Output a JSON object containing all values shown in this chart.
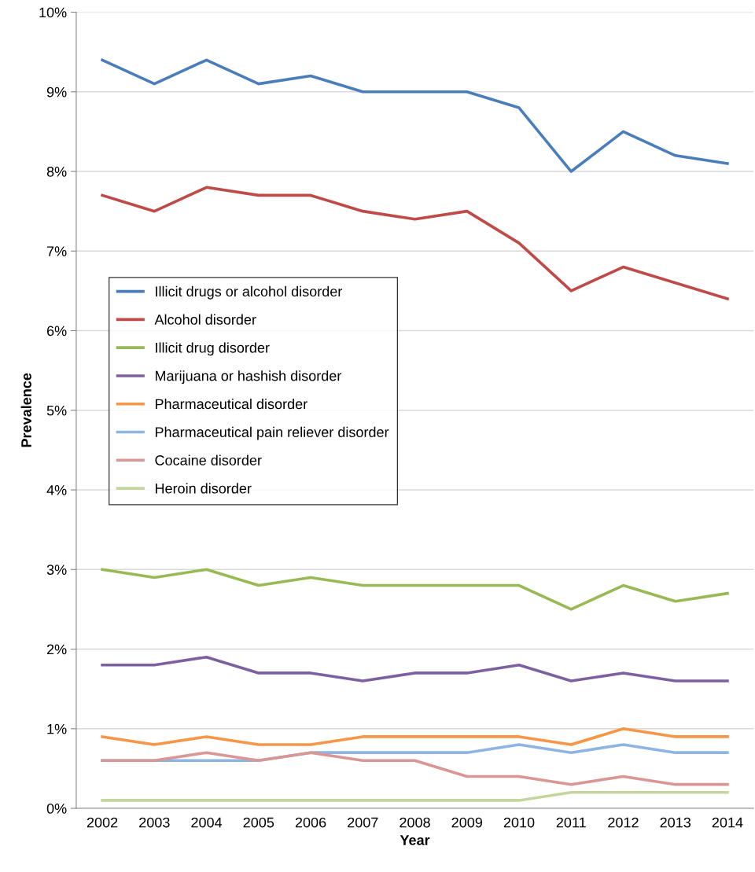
{
  "chart_data": {
    "type": "line",
    "xlabel": "Year",
    "ylabel": "Prevalence",
    "categories": [
      "2002",
      "2003",
      "2004",
      "2005",
      "2006",
      "2007",
      "2008",
      "2009",
      "2010",
      "2011",
      "2012",
      "2013",
      "2014"
    ],
    "ylim": [
      0,
      10
    ],
    "yticks": [
      {
        "value": 0,
        "label": "0%"
      },
      {
        "value": 1,
        "label": "1%"
      },
      {
        "value": 2,
        "label": "2%"
      },
      {
        "value": 3,
        "label": "3%"
      },
      {
        "value": 4,
        "label": "4%"
      },
      {
        "value": 5,
        "label": "5%"
      },
      {
        "value": 6,
        "label": "6%"
      },
      {
        "value": 7,
        "label": "7%"
      },
      {
        "value": 8,
        "label": "8%"
      },
      {
        "value": 9,
        "label": "9%"
      },
      {
        "value": 10,
        "label": "10%"
      }
    ],
    "grid": "y",
    "legend": "left",
    "marker": "none",
    "line_style": "solid",
    "series": [
      {
        "name": "Illicit drugs or alcohol disorder",
        "color": "#4a7ebb",
        "values": [
          9.4,
          9.1,
          9.4,
          9.1,
          9.2,
          9.0,
          9.0,
          9.0,
          8.8,
          8.0,
          8.5,
          8.2,
          8.1
        ]
      },
      {
        "name": "Alcohol disorder",
        "color": "#be4b48",
        "values": [
          7.7,
          7.5,
          7.8,
          7.7,
          7.7,
          7.5,
          7.4,
          7.5,
          7.1,
          6.5,
          6.8,
          6.6,
          6.4
        ]
      },
      {
        "name": "Illicit drug disorder",
        "color": "#98b954",
        "values": [
          3.0,
          2.9,
          3.0,
          2.8,
          2.9,
          2.8,
          2.8,
          2.8,
          2.8,
          2.5,
          2.8,
          2.6,
          2.7
        ]
      },
      {
        "name": "Marijuana or hashish disorder",
        "color": "#7d60a0",
        "values": [
          1.8,
          1.8,
          1.9,
          1.7,
          1.7,
          1.6,
          1.7,
          1.7,
          1.8,
          1.6,
          1.7,
          1.6,
          1.6
        ]
      },
      {
        "name": "Pharmaceutical disorder",
        "color": "#f79646",
        "values": [
          0.9,
          0.8,
          0.9,
          0.8,
          0.8,
          0.9,
          0.9,
          0.9,
          0.9,
          0.8,
          1.0,
          0.9,
          0.9
        ]
      },
      {
        "name": "Pharmaceutical pain reliever disorder",
        "color": "#8eb4e3",
        "values": [
          0.6,
          0.6,
          0.6,
          0.6,
          0.7,
          0.7,
          0.7,
          0.7,
          0.8,
          0.7,
          0.8,
          0.7,
          0.7
        ]
      },
      {
        "name": "Cocaine disorder",
        "color": "#d99694",
        "values": [
          0.6,
          0.6,
          0.7,
          0.6,
          0.7,
          0.6,
          0.6,
          0.4,
          0.4,
          0.3,
          0.4,
          0.3,
          0.3
        ]
      },
      {
        "name": "Heroin disorder",
        "color": "#c3d69b",
        "values": [
          0.1,
          0.1,
          0.1,
          0.1,
          0.1,
          0.1,
          0.1,
          0.1,
          0.1,
          0.2,
          0.2,
          0.2,
          0.2
        ]
      }
    ]
  }
}
